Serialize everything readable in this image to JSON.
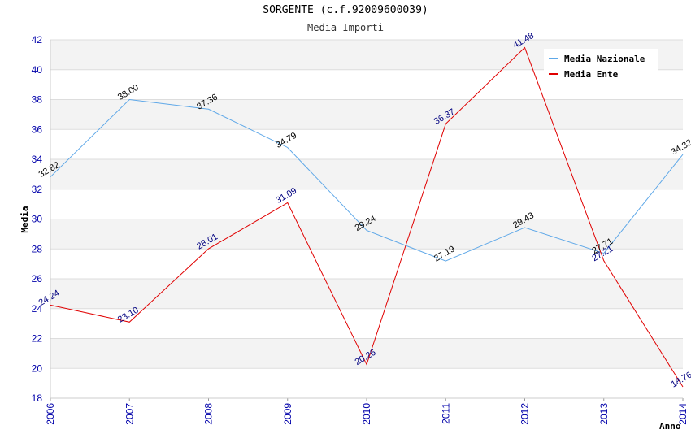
{
  "chart_data": {
    "type": "line",
    "title": "SORGENTE (c.f.92009600039)",
    "subtitle": "Media Importi",
    "xlabel": "Anno",
    "ylabel": "Media",
    "ylim": [
      18,
      42
    ],
    "yticks": [
      "18",
      "20",
      "22",
      "24",
      "26",
      "28",
      "30",
      "32",
      "34",
      "36",
      "38",
      "40",
      "42"
    ],
    "categories": [
      "2006",
      "2007",
      "2008",
      "2009",
      "2010",
      "2011",
      "2012",
      "2013",
      "2014"
    ],
    "grid": true,
    "legend_position": "top-right",
    "series": [
      {
        "name": "Media Nazionale",
        "color": "#5fa8e8",
        "values": [
          32.82,
          38.0,
          37.36,
          34.79,
          29.24,
          27.19,
          29.43,
          27.71,
          34.32
        ],
        "labels": [
          "32.82",
          "38.00",
          "37.36",
          "34.79",
          "29.24",
          "27.19",
          "29.43",
          "27.71",
          "34.32"
        ]
      },
      {
        "name": "Media Ente",
        "color": "#e00000",
        "values": [
          24.24,
          23.1,
          28.01,
          31.09,
          20.26,
          36.37,
          41.48,
          27.21,
          18.76
        ],
        "labels": [
          "24.24",
          "23.10",
          "28.01",
          "31.09",
          "20.26",
          "36.37",
          "41.48",
          "27.21",
          "18.76"
        ]
      }
    ]
  }
}
